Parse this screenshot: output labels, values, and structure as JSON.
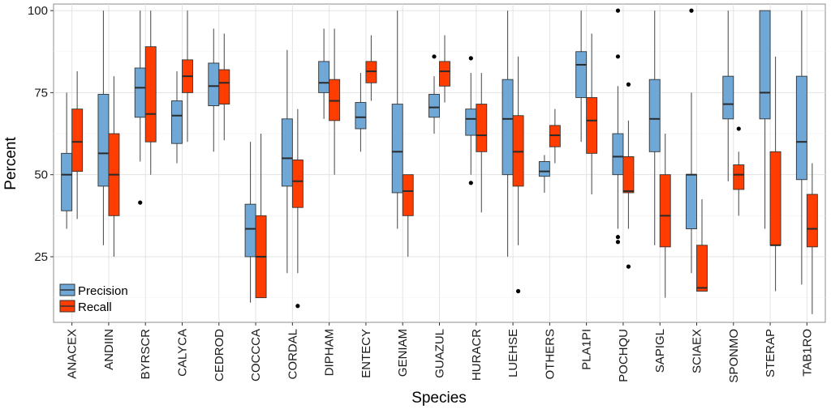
{
  "chart_data": {
    "type": "boxplot",
    "title": "",
    "xlabel": "Species",
    "ylabel": "Percent",
    "ylim": [
      5,
      102
    ],
    "yticks": [
      25,
      50,
      75,
      100
    ],
    "grid": true,
    "legend_position": "bottom-left",
    "categories": [
      "ANACEX",
      "ANDIIN",
      "BYRSCR",
      "CALYCA",
      "CEDROD",
      "COCCCA",
      "CORDAL",
      "DIPHAM",
      "ENTECY",
      "GENIAM",
      "GUAZUL",
      "HURACR",
      "LUEHSE",
      "OTHERS",
      "PLA1PI",
      "POCHQU",
      "SAPIGL",
      "SCIAEX",
      "SPONMO",
      "STERAP",
      "TAB1RO"
    ],
    "colors": {
      "Precision": "#6fa8d6",
      "Recall": "#ff3d00",
      "box_stroke": "#333333",
      "whisker": "#555555"
    },
    "series": [
      {
        "name": "Precision",
        "boxes": [
          {
            "min": 33.5,
            "q1": 39,
            "median": 50,
            "q3": 56.5,
            "max": 75,
            "outliers": []
          },
          {
            "min": 28.5,
            "q1": 46.5,
            "median": 56.5,
            "q3": 74.5,
            "max": 100,
            "outliers": []
          },
          {
            "min": 54,
            "q1": 67.5,
            "median": 76.5,
            "q3": 82.5,
            "max": 100,
            "outliers": [
              41.5
            ]
          },
          {
            "min": 53.5,
            "q1": 59.5,
            "median": 68,
            "q3": 72.5,
            "max": 81.5,
            "outliers": []
          },
          {
            "min": 57,
            "q1": 71,
            "median": 77,
            "q3": 84,
            "max": 94.5,
            "outliers": []
          },
          {
            "min": 11,
            "q1": 25,
            "median": 33.5,
            "q3": 41,
            "max": 60,
            "outliers": []
          },
          {
            "min": 20,
            "q1": 46.5,
            "median": 55,
            "q3": 67,
            "max": 88,
            "outliers": []
          },
          {
            "min": 67,
            "q1": 75,
            "median": 78,
            "q3": 84.5,
            "max": 94.5,
            "outliers": []
          },
          {
            "min": 57,
            "q1": 64,
            "median": 67.5,
            "q3": 72,
            "max": 81,
            "outliers": []
          },
          {
            "min": 33.5,
            "q1": 44.5,
            "median": 57,
            "q3": 71.5,
            "max": 100,
            "outliers": []
          },
          {
            "min": 62.5,
            "q1": 67.5,
            "median": 70.5,
            "q3": 74.5,
            "max": 80,
            "outliers": [
              86
            ]
          },
          {
            "min": 50,
            "q1": 62,
            "median": 67,
            "q3": 70,
            "max": 81,
            "outliers": [
              85.5,
              47.5
            ]
          },
          {
            "min": 25,
            "q1": 50,
            "median": 67,
            "q3": 79,
            "max": 100,
            "outliers": []
          },
          {
            "min": 44.5,
            "q1": 49.5,
            "median": 51,
            "q3": 54,
            "max": 56,
            "outliers": []
          },
          {
            "min": 60,
            "q1": 73.5,
            "median": 83.5,
            "q3": 87.5,
            "max": 100,
            "outliers": []
          },
          {
            "min": 33.5,
            "q1": 50,
            "median": 55.5,
            "q3": 62.5,
            "max": 77,
            "outliers": [
              100,
              86,
              31,
              29.5
            ]
          },
          {
            "min": 28.5,
            "q1": 57,
            "median": 67,
            "q3": 79,
            "max": 100,
            "outliers": []
          },
          {
            "min": 20,
            "q1": 33.5,
            "median": 50,
            "q3": 50,
            "max": 75,
            "outliers": [
              100
            ]
          },
          {
            "min": 48,
            "q1": 67,
            "median": 71.5,
            "q3": 80,
            "max": 100,
            "outliers": []
          },
          {
            "min": 33.5,
            "q1": 67,
            "median": 75,
            "q3": 100,
            "max": 100,
            "outliers": []
          },
          {
            "min": 16.5,
            "q1": 48.5,
            "median": 60,
            "q3": 80,
            "max": 100,
            "outliers": []
          }
        ]
      },
      {
        "name": "Recall",
        "boxes": [
          {
            "min": 36.5,
            "q1": 51,
            "median": 60,
            "q3": 70,
            "max": 81.5,
            "outliers": []
          },
          {
            "min": 25,
            "q1": 37.5,
            "median": 50,
            "q3": 62.5,
            "max": 80,
            "outliers": []
          },
          {
            "min": 50,
            "q1": 60,
            "median": 68.5,
            "q3": 89,
            "max": 100,
            "outliers": []
          },
          {
            "min": 60,
            "q1": 75,
            "median": 80,
            "q3": 85,
            "max": 100,
            "outliers": []
          },
          {
            "min": 60.5,
            "q1": 71.5,
            "median": 78,
            "q3": 82,
            "max": 93,
            "outliers": []
          },
          {
            "min": 12.5,
            "q1": 12.5,
            "median": 25,
            "q3": 37.5,
            "max": 62.5,
            "outliers": []
          },
          {
            "min": 20,
            "q1": 40,
            "median": 48,
            "q3": 54.5,
            "max": 70,
            "outliers": [
              10
            ]
          },
          {
            "min": 50,
            "q1": 66.5,
            "median": 72.5,
            "q3": 79,
            "max": 94.5,
            "outliers": []
          },
          {
            "min": 72.5,
            "q1": 78,
            "median": 81.5,
            "q3": 84.5,
            "max": 92.5,
            "outliers": []
          },
          {
            "min": 25,
            "q1": 37.5,
            "median": 45,
            "q3": 50,
            "max": 50,
            "outliers": []
          },
          {
            "min": 72,
            "q1": 77,
            "median": 81.5,
            "q3": 84.5,
            "max": 92.5,
            "outliers": []
          },
          {
            "min": 38.5,
            "q1": 57,
            "median": 62,
            "q3": 71.5,
            "max": 81,
            "outliers": []
          },
          {
            "min": 28.5,
            "q1": 46.5,
            "median": 57,
            "q3": 68,
            "max": 86,
            "outliers": [
              14.5
            ]
          },
          {
            "min": 53.5,
            "q1": 58.5,
            "median": 62,
            "q3": 65,
            "max": 70,
            "outliers": []
          },
          {
            "min": 44,
            "q1": 56.5,
            "median": 66.5,
            "q3": 73.5,
            "max": 93,
            "outliers": []
          },
          {
            "min": 33.5,
            "q1": 44.5,
            "median": 45,
            "q3": 55.5,
            "max": 66.5,
            "outliers": [
              77.5,
              22
            ]
          },
          {
            "min": 12.5,
            "q1": 28,
            "median": 37.5,
            "q3": 50,
            "max": 62.5,
            "outliers": []
          },
          {
            "min": 14.5,
            "q1": 14.5,
            "median": 15.5,
            "q3": 28.5,
            "max": 42.5,
            "outliers": []
          },
          {
            "min": 37.5,
            "q1": 45.5,
            "median": 50,
            "q3": 53,
            "max": 57,
            "outliers": [
              64
            ]
          },
          {
            "min": 14.5,
            "q1": 28.5,
            "median": 28.5,
            "q3": 57,
            "max": 86,
            "outliers": []
          },
          {
            "min": 7.5,
            "q1": 28,
            "median": 33.5,
            "q3": 44,
            "max": 53.5,
            "outliers": []
          }
        ]
      }
    ]
  }
}
